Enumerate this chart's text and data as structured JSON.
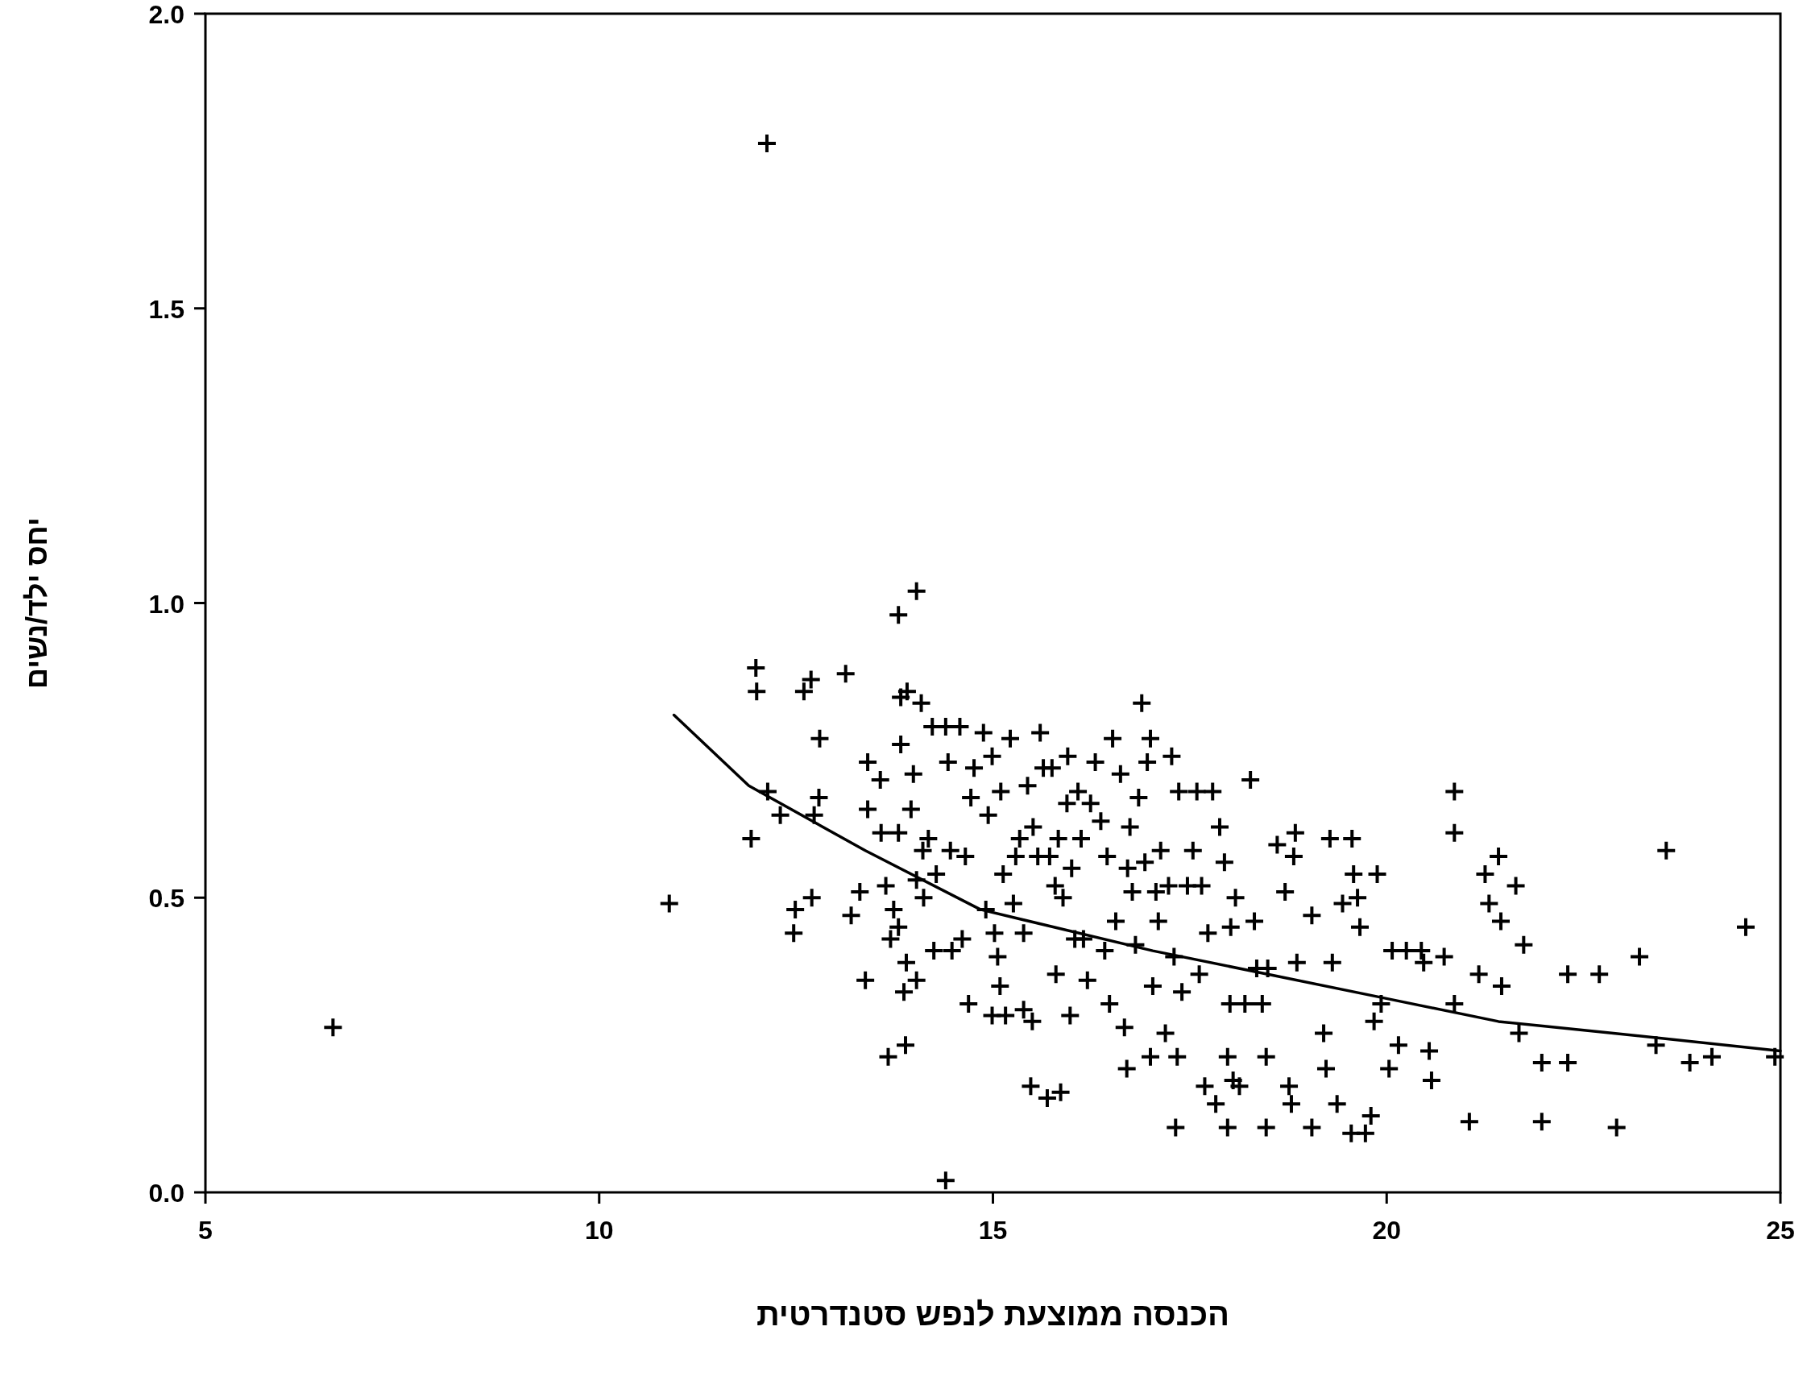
{
  "chart_data": {
    "type": "scatter",
    "xlabel": "הכנסה ממוצעת לנפש סטנדרטית",
    "ylabel": "יחס ילד/נשים",
    "xlim": [
      5,
      25
    ],
    "ylim": [
      0,
      2
    ],
    "xticks": [
      5,
      10,
      15,
      20,
      25
    ],
    "yticks": [
      {
        "value": 0,
        "label": "0.0"
      },
      {
        "value": 0.5,
        "label": "0.5"
      },
      {
        "value": 1,
        "label": "1.0"
      },
      {
        "value": 1.5,
        "label": "1.5"
      },
      {
        "value": 2,
        "label": "2.0"
      }
    ],
    "series": [
      {
        "marker": "cross",
        "color": "#000000",
        "x": [
          10.89,
          11.99,
          12.0,
          11.93,
          12.14,
          12.3,
          12.49,
          12.47,
          12.6,
          12.69,
          12.7,
          12.73,
          12.79,
          12.8,
          13.13,
          13.2,
          13.31,
          13.38,
          13.41,
          13.41,
          13.58,
          13.57,
          13.64,
          13.67,
          13.7,
          13.74,
          13.8,
          14.03,
          13.83,
          13.91,
          13.89,
          13.87,
          13.9,
          13.8,
          13.8,
          13.83,
          13.99,
          13.96,
          14.03,
          14.09,
          14.11,
          14.12,
          14.03,
          14.18,
          14.23,
          14.25,
          14.28,
          14.4,
          14.4,
          14.43,
          14.46,
          14.48,
          14.58,
          14.61,
          14.65,
          14.69,
          14.72,
          14.76,
          14.88,
          14.91,
          14.94,
          14.99,
          14.99,
          15.02,
          15.06,
          15.1,
          15.13,
          15.09,
          15.16,
          15.22,
          15.26,
          15.29,
          15.34,
          15.39,
          15.39,
          15.44,
          15.48,
          15.5,
          15.51,
          15.57,
          15.6,
          15.64,
          15.69,
          15.72,
          15.75,
          15.79,
          15.8,
          15.83,
          15.86,
          15.89,
          15.94,
          15.95,
          15.98,
          16.0,
          16.04,
          16.08,
          16.12,
          16.15,
          16.2,
          16.24,
          16.3,
          16.37,
          16.42,
          16.45,
          16.48,
          16.52,
          16.56,
          16.62,
          16.67,
          16.71,
          16.7,
          16.74,
          16.77,
          16.81,
          16.85,
          16.89,
          16.93,
          16.96,
          17.0,
          17.0,
          17.03,
          17.07,
          17.1,
          17.13,
          17.19,
          17.23,
          17.27,
          17.3,
          17.32,
          17.34,
          17.36,
          17.4,
          17.47,
          17.54,
          17.59,
          17.62,
          17.65,
          17.69,
          17.73,
          17.79,
          17.83,
          17.88,
          17.94,
          17.98,
          17.98,
          18.01,
          18.02,
          18.05,
          18.08,
          18.13,
          18.2,
          18.27,
          18.32,
          18.35,
          18.42,
          18.47,
          18.47,
          18.49,
          18.61,
          18.71,
          18.76,
          18.79,
          18.82,
          18.84,
          18.86,
          19.05,
          19.05,
          19.2,
          19.23,
          19.28,
          19.31,
          19.37,
          19.44,
          19.55,
          19.56,
          19.58,
          19.63,
          19.66,
          19.73,
          19.8,
          19.84,
          19.88,
          19.93,
          20.03,
          20.07,
          20.15,
          20.25,
          20.44,
          20.47,
          20.54,
          20.57,
          20.73,
          20.86,
          20.86,
          20.86,
          21.05,
          21.17,
          21.25,
          21.3,
          21.42,
          21.45,
          21.46,
          21.64,
          21.68,
          21.74,
          21.97,
          21.97,
          22.3,
          22.3,
          22.7,
          22.92,
          23.21,
          23.42,
          23.55,
          23.85,
          24.13,
          24.56,
          24.93,
          12.13,
          6.62
        ],
        "values": [
          0.49,
          0.89,
          0.85,
          0.6,
          0.68,
          0.64,
          0.48,
          0.44,
          0.85,
          0.87,
          0.5,
          0.64,
          0.67,
          0.77,
          0.88,
          0.47,
          0.51,
          0.36,
          0.73,
          0.65,
          0.61,
          0.7,
          0.52,
          0.23,
          0.43,
          0.48,
          0.98,
          1.02,
          0.84,
          0.85,
          0.25,
          0.34,
          0.39,
          0.61,
          0.45,
          0.76,
          0.71,
          0.65,
          0.36,
          0.83,
          0.58,
          0.5,
          0.53,
          0.6,
          0.79,
          0.41,
          0.54,
          0.02,
          0.79,
          0.73,
          0.58,
          0.41,
          0.79,
          0.43,
          0.57,
          0.32,
          0.67,
          0.72,
          0.78,
          0.48,
          0.64,
          0.74,
          0.3,
          0.44,
          0.4,
          0.68,
          0.54,
          0.35,
          0.3,
          0.77,
          0.49,
          0.57,
          0.6,
          0.44,
          0.31,
          0.69,
          0.18,
          0.29,
          0.62,
          0.57,
          0.78,
          0.72,
          0.16,
          0.57,
          0.72,
          0.52,
          0.37,
          0.6,
          0.17,
          0.5,
          0.66,
          0.74,
          0.3,
          0.55,
          0.43,
          0.68,
          0.6,
          0.43,
          0.36,
          0.66,
          0.73,
          0.63,
          0.41,
          0.57,
          0.32,
          0.77,
          0.46,
          0.71,
          0.28,
          0.55,
          0.21,
          0.62,
          0.51,
          0.42,
          0.67,
          0.83,
          0.56,
          0.73,
          0.77,
          0.23,
          0.35,
          0.51,
          0.46,
          0.58,
          0.27,
          0.52,
          0.74,
          0.4,
          0.11,
          0.23,
          0.68,
          0.34,
          0.52,
          0.58,
          0.68,
          0.37,
          0.52,
          0.18,
          0.44,
          0.68,
          0.15,
          0.62,
          0.56,
          0.23,
          0.11,
          0.32,
          0.45,
          0.19,
          0.5,
          0.18,
          0.32,
          0.7,
          0.46,
          0.38,
          0.32,
          0.23,
          0.11,
          0.38,
          0.59,
          0.51,
          0.18,
          0.15,
          0.57,
          0.61,
          0.39,
          0.11,
          0.47,
          0.27,
          0.21,
          0.6,
          0.39,
          0.15,
          0.49,
          0.1,
          0.6,
          0.54,
          0.5,
          0.45,
          0.1,
          0.13,
          0.29,
          0.54,
          0.32,
          0.21,
          0.41,
          0.25,
          0.41,
          0.41,
          0.39,
          0.24,
          0.19,
          0.4,
          0.68,
          0.61,
          0.32,
          0.12,
          0.37,
          0.54,
          0.49,
          0.57,
          0.46,
          0.35,
          0.52,
          0.27,
          0.42,
          0.22,
          0.12,
          0.22,
          0.37,
          0.37,
          0.11,
          0.4,
          0.25,
          0.58,
          0.22,
          0.23,
          0.45,
          0.23,
          1.78,
          0.28
        ]
      },
      {
        "type": "line",
        "marker": "none",
        "color": "#000000",
        "x": [
          10.95,
          11.9,
          13.38,
          14.84,
          17.03,
          18.49,
          19.96,
          21.42,
          22.88,
          25
        ],
        "values": [
          0.81,
          0.69,
          0.58,
          0.48,
          0.41,
          0.37,
          0.33,
          0.29,
          0.27,
          0.24
        ]
      }
    ]
  }
}
